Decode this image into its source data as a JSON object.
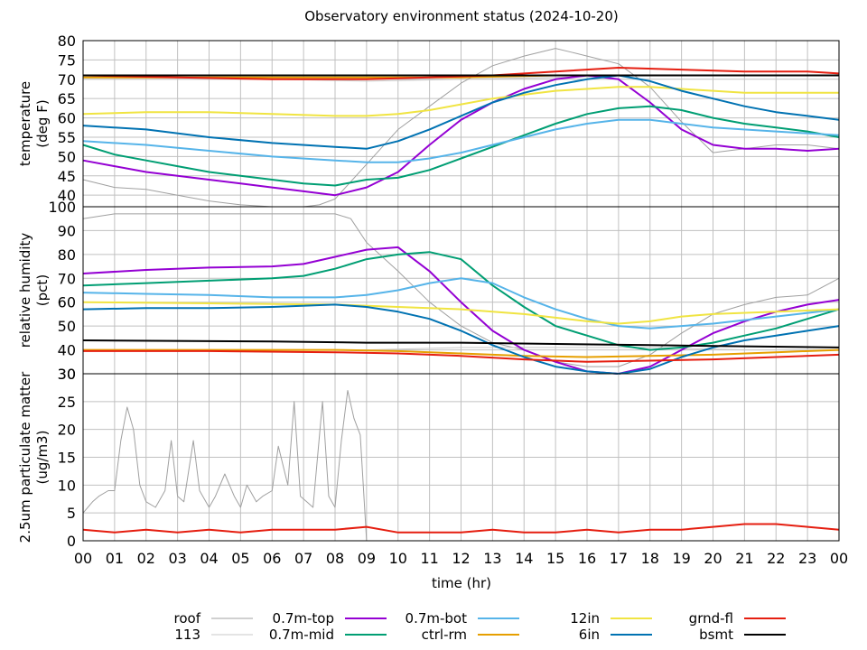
{
  "chart_data": {
    "type": "line",
    "title": "Observatory environment status (2024-10-20)",
    "xlabel": "time (hr)",
    "xlim": [
      0,
      24
    ],
    "x_tick_labels": [
      "00",
      "01",
      "02",
      "03",
      "04",
      "05",
      "06",
      "07",
      "08",
      "09",
      "10",
      "11",
      "12",
      "13",
      "14",
      "15",
      "16",
      "17",
      "18",
      "19",
      "20",
      "21",
      "22",
      "23",
      "00"
    ],
    "legend": [
      {
        "key": "roof",
        "label": "roof",
        "color": "#a0a0a0"
      },
      {
        "key": "s113",
        "label": "113",
        "color": "#c8c8c8"
      },
      {
        "key": "top",
        "label": "0.7m-top",
        "color": "#9400d3"
      },
      {
        "key": "mid",
        "label": "0.7m-mid",
        "color": "#009e73"
      },
      {
        "key": "bot",
        "label": "0.7m-bot",
        "color": "#56b4e9"
      },
      {
        "key": "ctrl",
        "label": "ctrl-rm",
        "color": "#e69f00"
      },
      {
        "key": "in12",
        "label": "12in",
        "color": "#f0e442"
      },
      {
        "key": "in6",
        "label": "6in",
        "color": "#0072b2"
      },
      {
        "key": "grnd",
        "label": "grnd-fl",
        "color": "#e51e10"
      },
      {
        "key": "bsmt",
        "label": "bsmt",
        "color": "#000000"
      }
    ],
    "panels": [
      {
        "name": "temperature",
        "ylabel": [
          "temperature",
          "(deg F)"
        ],
        "ylim": [
          37,
          80
        ],
        "yticks": [
          40,
          45,
          50,
          55,
          60,
          65,
          70,
          75,
          80
        ],
        "series": [
          {
            "key": "s113",
            "x": [
              0,
              6,
              9,
              12,
              15,
              18,
              21,
              24
            ],
            "y": [
              70,
              70,
              69.5,
              70,
              70.5,
              71,
              71,
              71
            ]
          },
          {
            "key": "roof",
            "x": [
              0,
              1,
              2,
              3,
              4,
              5,
              6,
              7,
              7.5,
              8,
              9,
              10,
              11,
              12,
              13,
              14,
              15,
              15.5,
              16,
              17,
              18,
              19,
              20,
              21,
              22,
              23,
              24
            ],
            "y": [
              44,
              42,
              41.5,
              40,
              38.5,
              37.5,
              37,
              37,
              37.5,
              39,
              48,
              57,
              63,
              69,
              73.5,
              76,
              78,
              77,
              76,
              74,
              68,
              59,
              51,
              52,
              53,
              53,
              52
            ]
          },
          {
            "key": "top",
            "x": [
              0,
              1,
              2,
              3,
              4,
              5,
              6,
              7,
              8,
              9,
              10,
              11,
              12,
              13,
              14,
              15,
              16,
              17,
              18,
              19,
              20,
              21,
              22,
              23,
              24
            ],
            "y": [
              49,
              47.5,
              46,
              45,
              44,
              43,
              42,
              41,
              40,
              42,
              46,
              53,
              59.5,
              64,
              67.5,
              70,
              71,
              70,
              64,
              57,
              53,
              52,
              52,
              51.5,
              52
            ]
          },
          {
            "key": "mid",
            "x": [
              0,
              1,
              2,
              3,
              4,
              5,
              6,
              7,
              8,
              9,
              10,
              11,
              12,
              13,
              14,
              15,
              16,
              17,
              18,
              19,
              20,
              21,
              22,
              23,
              24
            ],
            "y": [
              53,
              50.5,
              49,
              47.5,
              46,
              45,
              44,
              43,
              42.5,
              44,
              44.5,
              46.5,
              49.5,
              52.5,
              55.5,
              58.5,
              61,
              62.5,
              63,
              62,
              60,
              58.5,
              57.5,
              56.5,
              55
            ]
          },
          {
            "key": "bot",
            "x": [
              0,
              2,
              4,
              6,
              8,
              9,
              10,
              11,
              12,
              13,
              14,
              15,
              16,
              17,
              18,
              19,
              20,
              22,
              24
            ],
            "y": [
              54,
              53,
              51.5,
              50,
              49,
              48.5,
              48.5,
              49.5,
              51,
              53,
              55,
              57,
              58.5,
              59.5,
              59.5,
              58.5,
              57.5,
              56.5,
              55.5
            ]
          },
          {
            "key": "ctrl",
            "x": [
              0,
              3,
              6,
              9,
              12,
              15,
              18,
              21,
              24
            ],
            "y": [
              70.5,
              70.5,
              70.5,
              70.5,
              70.5,
              71,
              71,
              71,
              71
            ]
          },
          {
            "key": "in12",
            "x": [
              0,
              2,
              4,
              6,
              8,
              9,
              10,
              11,
              12,
              13,
              14,
              15,
              16,
              17,
              18,
              19,
              20,
              21,
              22,
              24
            ],
            "y": [
              61,
              61.5,
              61.5,
              61,
              60.5,
              60.5,
              61,
              62,
              63.5,
              65,
              66,
              67,
              67.5,
              68,
              68,
              67.5,
              67,
              66.5,
              66.5,
              66.5
            ]
          },
          {
            "key": "in6",
            "x": [
              0,
              2,
              4,
              6,
              8,
              9,
              10,
              11,
              12,
              13,
              14,
              15,
              16,
              17,
              18,
              19,
              20,
              21,
              22,
              23,
              24
            ],
            "y": [
              58,
              57,
              55,
              53.5,
              52.5,
              52,
              54,
              57,
              60.5,
              64,
              66.5,
              68.5,
              70,
              71,
              69.5,
              67,
              65,
              63,
              61.5,
              60.5,
              59.5
            ]
          },
          {
            "key": "grnd",
            "x": [
              0,
              3,
              6,
              9,
              11,
              13,
              15,
              17,
              19,
              21,
              23,
              24
            ],
            "y": [
              71,
              70.5,
              70,
              70,
              70.5,
              71,
              72,
              73,
              72.5,
              72,
              72,
              71.5
            ]
          },
          {
            "key": "bsmt",
            "x": [
              0,
              24
            ],
            "y": [
              71,
              71
            ]
          }
        ]
      },
      {
        "name": "humidity",
        "ylabel": [
          "relative humidity",
          "(pct)"
        ],
        "ylim": [
          30,
          100
        ],
        "yticks": [
          30,
          40,
          50,
          60,
          70,
          80,
          90,
          100
        ],
        "series": [
          {
            "key": "roof",
            "x": [
              0,
              1,
              2,
              3,
              4,
              5,
              6,
              7,
              8,
              8.5,
              9,
              10,
              11,
              12,
              13,
              14,
              15,
              16,
              17,
              18,
              19,
              20,
              21,
              22,
              23,
              24
            ],
            "y": [
              95,
              97,
              97,
              97,
              97,
              97,
              97,
              97,
              97,
              95,
              85,
              73,
              60,
              50,
              43,
              40,
              35,
              33,
              33,
              38,
              47,
              55,
              59,
              62,
              63,
              70
            ]
          },
          {
            "key": "s113",
            "x": [
              0,
              3,
              6,
              9,
              12,
              15,
              18,
              21,
              24
            ],
            "y": [
              40,
              40,
              40,
              40,
              41,
              41,
              41,
              40,
              40
            ]
          },
          {
            "key": "top",
            "x": [
              0,
              2,
              4,
              6,
              7,
              8,
              9,
              10,
              11,
              12,
              13,
              14,
              15,
              16,
              17,
              18,
              19,
              20,
              21,
              22,
              23,
              24
            ],
            "y": [
              72,
              73.5,
              74.5,
              75,
              76,
              79,
              82,
              83,
              73,
              60,
              48,
              40,
              35,
              31,
              30,
              33,
              40,
              47,
              52,
              56,
              59,
              61
            ]
          },
          {
            "key": "mid",
            "x": [
              0,
              2,
              4,
              6,
              7,
              8,
              9,
              10,
              11,
              12,
              13,
              14,
              15,
              16,
              17,
              18,
              19,
              20,
              21,
              22,
              23,
              24
            ],
            "y": [
              67,
              68,
              69,
              70,
              71,
              74,
              78,
              80,
              81,
              78,
              67,
              58,
              50,
              46,
              42,
              40,
              41,
              43,
              46,
              49,
              53,
              57
            ]
          },
          {
            "key": "bot",
            "x": [
              0,
              2,
              4,
              6,
              8,
              9,
              10,
              11,
              12,
              13,
              14,
              15,
              16,
              17,
              18,
              19,
              20,
              22,
              24
            ],
            "y": [
              64,
              63.5,
              63,
              62,
              62,
              63,
              65,
              68,
              70,
              68,
              62,
              57,
              53,
              50,
              49,
              50,
              51,
              54,
              57
            ]
          },
          {
            "key": "ctrl",
            "x": [
              0,
              4,
              8,
              10,
              12,
              14,
              16,
              18,
              20,
              22,
              24
            ],
            "y": [
              40,
              40,
              40,
              39.5,
              38.5,
              37.5,
              37,
              37.5,
              38,
              39,
              40
            ]
          },
          {
            "key": "in12",
            "x": [
              0,
              4,
              8,
              10,
              12,
              14,
              15,
              16,
              17,
              18,
              19,
              20,
              22,
              24
            ],
            "y": [
              60,
              59.5,
              59,
              58,
              57,
              55,
              53.5,
              52,
              51,
              52,
              54,
              55,
              56,
              57
            ]
          },
          {
            "key": "in6",
            "x": [
              0,
              2,
              4,
              6,
              8,
              9,
              10,
              11,
              12,
              13,
              14,
              15,
              16,
              17,
              18,
              19,
              20,
              21,
              22,
              23,
              24
            ],
            "y": [
              57,
              57.5,
              57.5,
              58,
              59,
              58,
              56,
              53,
              48,
              42,
              37,
              33,
              31,
              30,
              32,
              37,
              41,
              44,
              46,
              48,
              50
            ]
          },
          {
            "key": "grnd",
            "x": [
              0,
              4,
              8,
              10,
              12,
              14,
              16,
              18,
              20,
              22,
              24
            ],
            "y": [
              39.5,
              39.5,
              39,
              38.5,
              37.5,
              36,
              35,
              35.5,
              36,
              37,
              38
            ]
          },
          {
            "key": "bsmt",
            "x": [
              0,
              6,
              9,
              12,
              15,
              18,
              21,
              24
            ],
            "y": [
              44,
              43.5,
              43,
              43,
              42.5,
              42,
              41.5,
              41
            ]
          }
        ]
      },
      {
        "name": "particulate",
        "ylabel": [
          "2.5um particulate matter",
          "(ug/m3)"
        ],
        "ylim": [
          0,
          30
        ],
        "yticks": [
          0,
          5,
          10,
          15,
          20,
          25,
          30
        ],
        "series": [
          {
            "key": "roof",
            "x": [
              0,
              0.3,
              0.5,
              0.8,
              1.0,
              1.2,
              1.4,
              1.6,
              1.8,
              2.0,
              2.3,
              2.6,
              2.8,
              3.0,
              3.2,
              3.5,
              3.7,
              4.0,
              4.2,
              4.5,
              4.8,
              5.0,
              5.2,
              5.5,
              5.7,
              6.0,
              6.2,
              6.5,
              6.7,
              6.9,
              7.1,
              7.3,
              7.6,
              7.8,
              8.0,
              8.2,
              8.4,
              8.6,
              8.8,
              9.0
            ],
            "y": [
              5,
              7,
              8,
              9,
              9,
              18,
              24,
              20,
              10,
              7,
              6,
              9,
              18,
              8,
              7,
              18,
              9,
              6,
              8,
              12,
              8,
              6,
              10,
              7,
              8,
              9,
              17,
              10,
              25,
              8,
              7,
              6,
              25,
              8,
              6,
              18,
              27,
              22,
              19,
              0
            ]
          },
          {
            "key": "grnd",
            "x": [
              0,
              1,
              2,
              3,
              4,
              5,
              6,
              7,
              8,
              9,
              10,
              11,
              12,
              13,
              14,
              15,
              16,
              17,
              18,
              19,
              20,
              21,
              22,
              23,
              24
            ],
            "y": [
              2,
              1.5,
              2,
              1.5,
              2,
              1.5,
              2,
              2,
              2,
              2.5,
              1.5,
              1.5,
              1.5,
              2,
              1.5,
              1.5,
              2,
              1.5,
              2,
              2,
              2.5,
              3,
              3,
              2.5,
              2
            ]
          }
        ]
      }
    ]
  }
}
